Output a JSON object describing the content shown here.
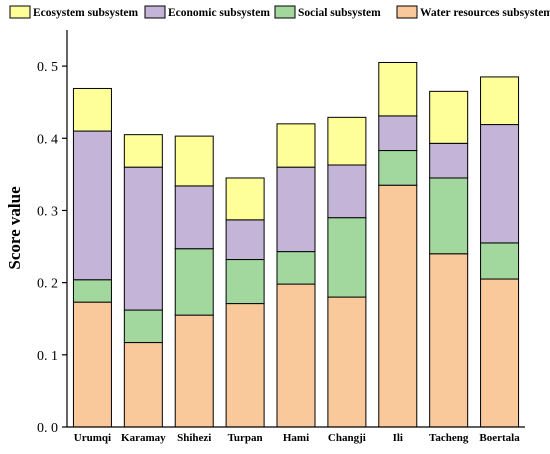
{
  "chart_data": {
    "type": "bar",
    "stacked": true,
    "categories": [
      "Urumqi",
      "Karamay",
      "Shihezi",
      "Turpan",
      "Hami",
      "Changji",
      "Ili",
      "Tacheng",
      "Boertala"
    ],
    "series": [
      {
        "name": "Water resources subsystem",
        "color": "#f9c89b",
        "values": [
          0.173,
          0.117,
          0.155,
          0.171,
          0.198,
          0.18,
          0.335,
          0.24,
          0.205
        ]
      },
      {
        "name": "Social subsystem",
        "color": "#a2d89e",
        "values": [
          0.031,
          0.045,
          0.092,
          0.061,
          0.045,
          0.11,
          0.048,
          0.105,
          0.05
        ]
      },
      {
        "name": "Economic subsystem",
        "color": "#c3b4d8",
        "values": [
          0.206,
          0.198,
          0.087,
          0.055,
          0.117,
          0.073,
          0.048,
          0.048,
          0.164
        ]
      },
      {
        "name": "Ecosystem subsystem",
        "color": "#ffff99",
        "values": [
          0.059,
          0.045,
          0.069,
          0.058,
          0.06,
          0.066,
          0.074,
          0.072,
          0.066
        ]
      }
    ],
    "legend_order": [
      "Ecosystem subsystem",
      "Economic subsystem",
      "Social subsystem",
      "Water resources subsystem"
    ],
    "legend_position": "top",
    "ylabel": "Score value",
    "xlabel": "",
    "ylim": [
      0,
      0.55
    ],
    "yticks": [
      0.0,
      0.1,
      0.2,
      0.3,
      0.4,
      0.5
    ],
    "ytick_labels": [
      "0. 0",
      "0. 1",
      "0. 2",
      "0. 3",
      "0. 4",
      "0. 5"
    ],
    "grid": false
  }
}
